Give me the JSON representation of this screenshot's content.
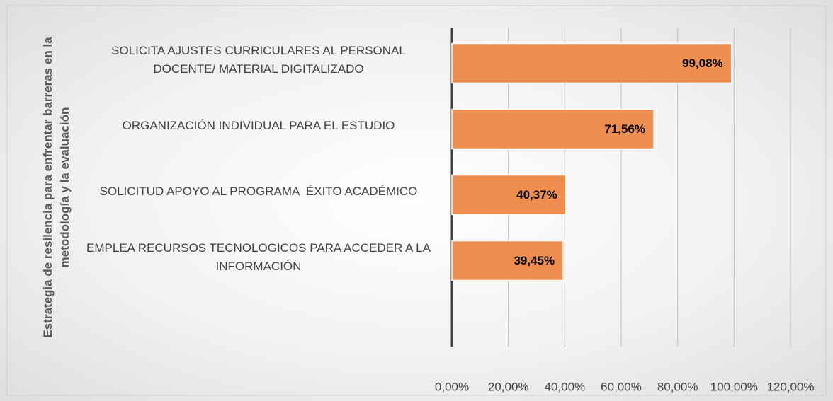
{
  "chart_data": {
    "type": "bar",
    "orientation": "horizontal",
    "y_axis_label": "Estrategia de resilencia para enfrentar barreras en la metodología y la evaluación",
    "categories": [
      "SOLICITA AJUSTES CURRICULARES AL PERSONAL DOCENTE/ MATERIAL DIGITALIZADO",
      "ORGANIZACIÓN INDIVIDUAL PARA EL ESTUDIO",
      "SOLICITUD APOYO AL PROGRAMA  ÉXITO ACADÉMICO",
      "EMPLEA RECURSOS TECNOLOGICOS PARA ACCEDER A LA INFORMACIÓN",
      null
    ],
    "values": [
      99.08,
      71.56,
      40.37,
      39.45,
      null
    ],
    "value_labels": [
      "99,08%",
      "71,56%",
      "40,37%",
      "39,45%",
      null
    ],
    "color": "#ef8f4f",
    "xlim": [
      0,
      120
    ],
    "xticks": [
      {
        "value": 0,
        "label": "0,00%"
      },
      {
        "value": 20,
        "label": "20,00%"
      },
      {
        "value": 40,
        "label": "40,00%"
      },
      {
        "value": 60,
        "label": "60,00%"
      },
      {
        "value": 80,
        "label": "80,00%"
      },
      {
        "value": 100,
        "label": "100,00%"
      },
      {
        "value": 120,
        "label": "120,00%"
      }
    ],
    "grid": true
  }
}
